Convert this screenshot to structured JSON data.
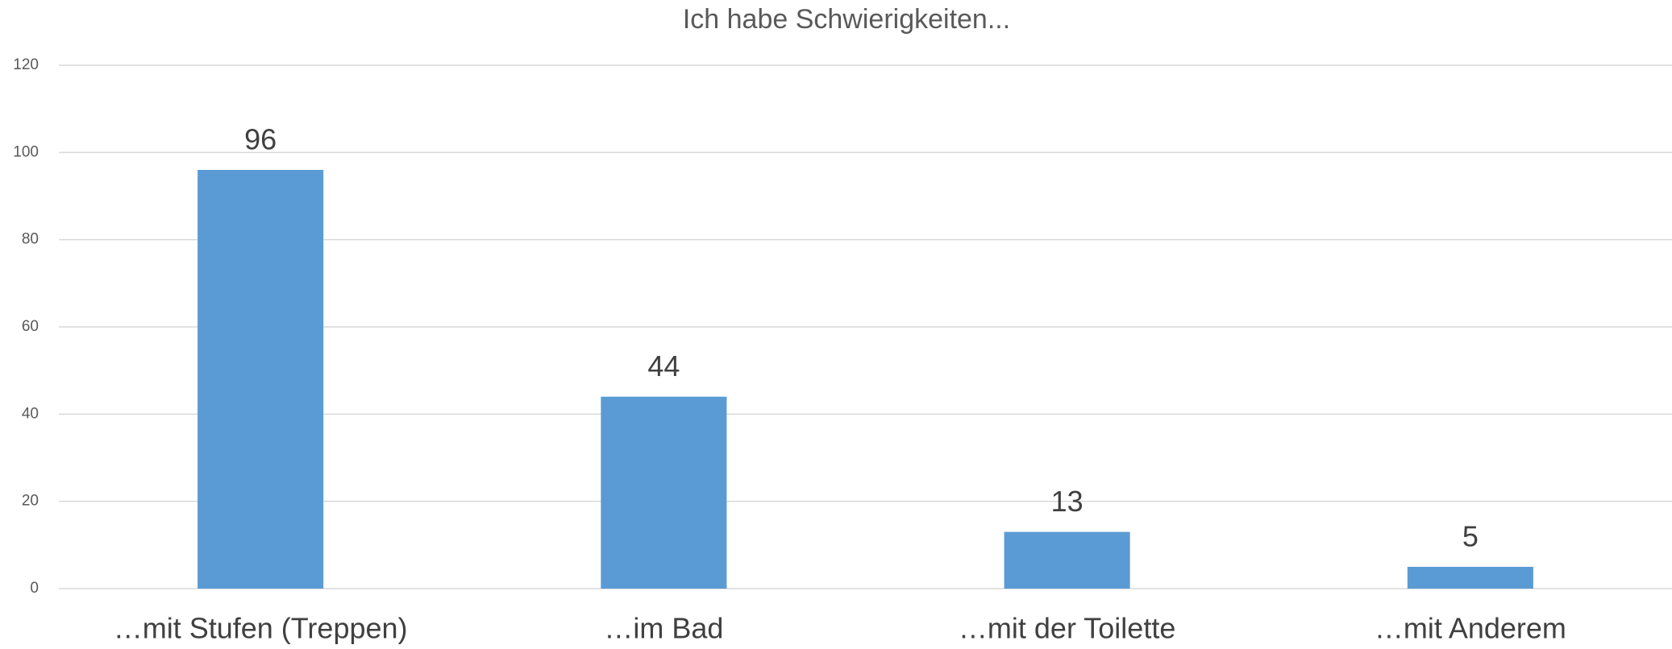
{
  "chart_data": {
    "type": "bar",
    "title": "Ich habe Schwierigkeiten...",
    "categories": [
      "…mit Stufen (Treppen)",
      "…im Bad",
      "…mit der Toilette",
      "…mit Anderem"
    ],
    "values": [
      96,
      44,
      13,
      5
    ],
    "color": "#5b9bd5",
    "ylim": [
      0,
      120
    ],
    "yticks": [
      0,
      20,
      40,
      60,
      80,
      100,
      120
    ],
    "grid": true
  }
}
